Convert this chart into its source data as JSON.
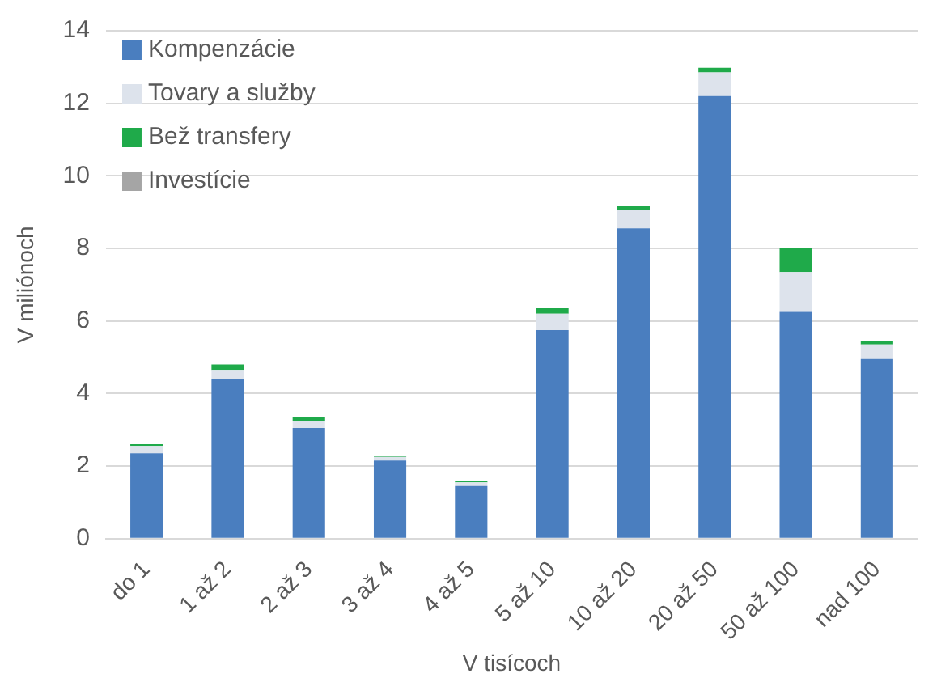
{
  "chart_data": {
    "type": "bar",
    "stacked": true,
    "xlabel": "V tisícoch",
    "ylabel": "V miliónoch",
    "categories": [
      "do 1",
      "1 až 2",
      "2 až 3",
      "3 až 4",
      "4 až 5",
      "5 až 10",
      "10 až 20",
      "20 až 50",
      "50 až 100",
      "nad 100"
    ],
    "series": [
      {
        "name": "Kompenzácie",
        "color": "#4a7ebf",
        "values": [
          2.35,
          4.4,
          3.05,
          2.15,
          1.45,
          5.75,
          8.55,
          12.2,
          6.25,
          4.95
        ]
      },
      {
        "name": "Tovary a služby",
        "color": "#dde3ec",
        "values": [
          0.2,
          0.25,
          0.2,
          0.1,
          0.1,
          0.45,
          0.5,
          0.65,
          1.1,
          0.4
        ]
      },
      {
        "name": "Bež transfery",
        "color": "#1faa4a",
        "values": [
          0.05,
          0.15,
          0.1,
          0.02,
          0.05,
          0.15,
          0.12,
          0.13,
          0.65,
          0.1
        ]
      },
      {
        "name": "Investície",
        "color": "#a5a5a5",
        "values": [
          0,
          0,
          0,
          0,
          0,
          0,
          0,
          0,
          0,
          0
        ]
      }
    ],
    "ylim": [
      0,
      14
    ],
    "yticks": [
      0,
      2,
      4,
      6,
      8,
      10,
      12,
      14
    ],
    "grid": "y",
    "legend": "top left"
  }
}
